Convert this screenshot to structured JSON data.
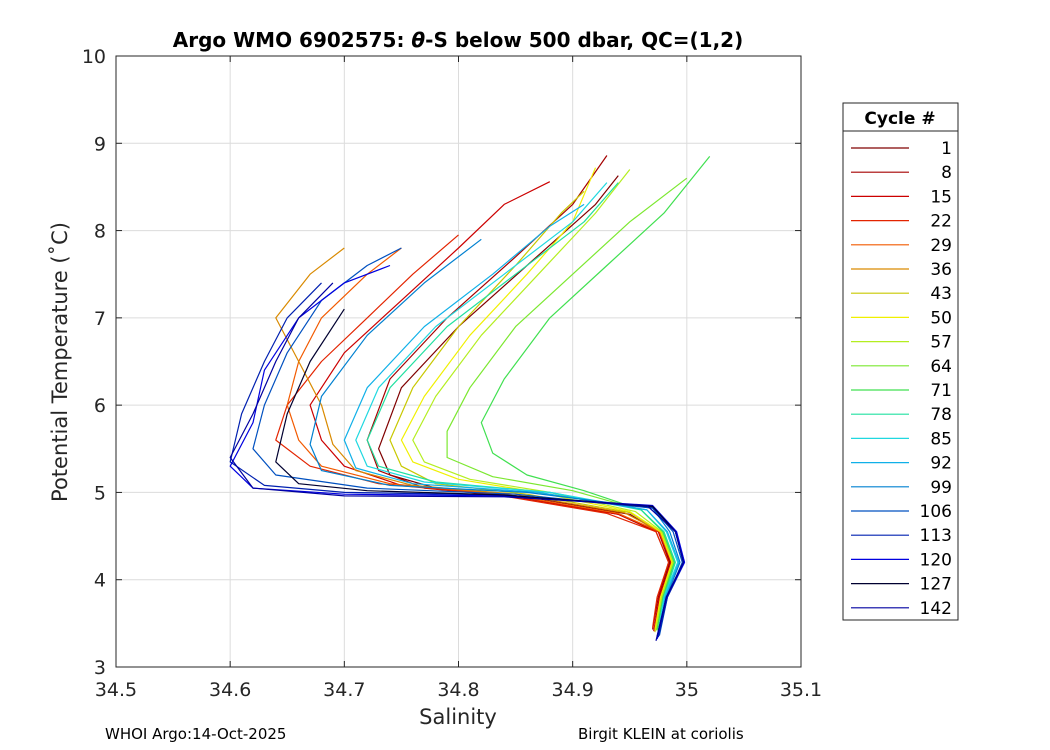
{
  "chart_data": {
    "type": "line",
    "title": "Argo WMO 6902575: θ-S below 500 dbar,  QC=(1,2)",
    "title_parts": {
      "prefix": "Argo WMO 6902575: ",
      "symbol": "θ",
      "suffix": "-S below 500 dbar,  QC=(1,2)"
    },
    "xlabel": "Salinity",
    "ylabel": "Potential Temperature (˚C)",
    "xlim": [
      34.5,
      35.1
    ],
    "ylim": [
      3,
      10
    ],
    "xticks": [
      "34.5",
      "34.6",
      "34.7",
      "34.8",
      "34.9",
      "35",
      "35.1"
    ],
    "yticks": [
      "3",
      "4",
      "5",
      "6",
      "7",
      "8",
      "9",
      "10"
    ],
    "grid": true,
    "legend_title": "Cycle #",
    "legend_position": "right",
    "series": [
      {
        "name": "1",
        "color": "#800000",
        "points": [
          [
            34.972,
            3.42
          ],
          [
            34.976,
            3.8
          ],
          [
            34.985,
            4.2
          ],
          [
            34.975,
            4.55
          ],
          [
            34.95,
            4.75
          ],
          [
            34.86,
            4.95
          ],
          [
            34.78,
            5.05
          ],
          [
            34.74,
            5.2
          ],
          [
            34.73,
            5.5
          ],
          [
            34.75,
            6.2
          ],
          [
            34.8,
            6.9
          ],
          [
            34.86,
            7.6
          ],
          [
            34.92,
            8.3
          ],
          [
            34.94,
            8.63
          ]
        ]
      },
      {
        "name": "8",
        "color": "#a50000",
        "points": [
          [
            34.97,
            3.43
          ],
          [
            34.975,
            3.8
          ],
          [
            34.984,
            4.2
          ],
          [
            34.973,
            4.55
          ],
          [
            34.94,
            4.75
          ],
          [
            34.85,
            4.95
          ],
          [
            34.77,
            5.05
          ],
          [
            34.73,
            5.25
          ],
          [
            34.72,
            5.6
          ],
          [
            34.74,
            6.3
          ],
          [
            34.79,
            7.0
          ],
          [
            34.85,
            7.7
          ],
          [
            34.9,
            8.3
          ],
          [
            34.93,
            8.86
          ]
        ]
      },
      {
        "name": "15",
        "color": "#cc0000",
        "points": [
          [
            34.971,
            3.41
          ],
          [
            34.976,
            3.8
          ],
          [
            34.986,
            4.2
          ],
          [
            34.975,
            4.55
          ],
          [
            34.94,
            4.75
          ],
          [
            34.84,
            4.97
          ],
          [
            34.75,
            5.08
          ],
          [
            34.7,
            5.3
          ],
          [
            34.68,
            5.6
          ],
          [
            34.67,
            6.0
          ],
          [
            34.7,
            6.6
          ],
          [
            34.75,
            7.2
          ],
          [
            34.8,
            7.8
          ],
          [
            34.84,
            8.3
          ],
          [
            34.88,
            8.56
          ]
        ]
      },
      {
        "name": "22",
        "color": "#e32400",
        "points": [
          [
            34.97,
            3.45
          ],
          [
            34.974,
            3.8
          ],
          [
            34.984,
            4.2
          ],
          [
            34.973,
            4.55
          ],
          [
            34.93,
            4.76
          ],
          [
            34.83,
            4.98
          ],
          [
            34.73,
            5.1
          ],
          [
            34.67,
            5.3
          ],
          [
            34.64,
            5.6
          ],
          [
            34.65,
            6.0
          ],
          [
            34.68,
            6.5
          ],
          [
            34.72,
            7.0
          ],
          [
            34.76,
            7.5
          ],
          [
            34.8,
            7.95
          ]
        ]
      },
      {
        "name": "29",
        "color": "#f25a00",
        "points": [
          [
            34.972,
            3.44
          ],
          [
            34.977,
            3.8
          ],
          [
            34.987,
            4.2
          ],
          [
            34.976,
            4.55
          ],
          [
            34.94,
            4.76
          ],
          [
            34.84,
            4.98
          ],
          [
            34.74,
            5.1
          ],
          [
            34.68,
            5.3
          ],
          [
            34.66,
            5.6
          ],
          [
            34.65,
            6.0
          ],
          [
            34.66,
            6.5
          ],
          [
            34.68,
            7.0
          ],
          [
            34.72,
            7.5
          ],
          [
            34.75,
            7.8
          ]
        ]
      },
      {
        "name": "36",
        "color": "#d98a00",
        "points": [
          [
            34.973,
            3.42
          ],
          [
            34.978,
            3.8
          ],
          [
            34.988,
            4.2
          ],
          [
            34.977,
            4.55
          ],
          [
            34.945,
            4.77
          ],
          [
            34.85,
            4.98
          ],
          [
            34.76,
            5.08
          ],
          [
            34.71,
            5.25
          ],
          [
            34.69,
            5.55
          ],
          [
            34.68,
            6.0
          ],
          [
            34.66,
            6.5
          ],
          [
            34.64,
            7.0
          ],
          [
            34.67,
            7.5
          ],
          [
            34.7,
            7.8
          ]
        ]
      },
      {
        "name": "43",
        "color": "#c8c800",
        "points": [
          [
            34.972,
            3.4
          ],
          [
            34.977,
            3.8
          ],
          [
            34.987,
            4.2
          ],
          [
            34.977,
            4.55
          ],
          [
            34.95,
            4.77
          ],
          [
            34.86,
            4.98
          ],
          [
            34.78,
            5.1
          ],
          [
            34.75,
            5.3
          ],
          [
            34.74,
            5.6
          ],
          [
            34.76,
            6.2
          ],
          [
            34.8,
            6.9
          ],
          [
            34.85,
            7.6
          ],
          [
            34.89,
            8.2
          ],
          [
            34.91,
            8.45
          ]
        ]
      },
      {
        "name": "50",
        "color": "#f0f000",
        "points": [
          [
            34.972,
            3.42
          ],
          [
            34.977,
            3.8
          ],
          [
            34.987,
            4.2
          ],
          [
            34.977,
            4.55
          ],
          [
            34.95,
            4.78
          ],
          [
            34.87,
            5.0
          ],
          [
            34.8,
            5.15
          ],
          [
            34.76,
            5.35
          ],
          [
            34.75,
            5.6
          ],
          [
            34.77,
            6.1
          ],
          [
            34.81,
            6.8
          ],
          [
            34.86,
            7.5
          ],
          [
            34.9,
            8.1
          ],
          [
            34.92,
            8.72
          ]
        ]
      },
      {
        "name": "57",
        "color": "#b4ee20",
        "points": [
          [
            34.973,
            3.42
          ],
          [
            34.978,
            3.8
          ],
          [
            34.988,
            4.2
          ],
          [
            34.978,
            4.55
          ],
          [
            34.955,
            4.78
          ],
          [
            34.88,
            5.0
          ],
          [
            34.81,
            5.15
          ],
          [
            34.77,
            5.35
          ],
          [
            34.76,
            5.6
          ],
          [
            34.78,
            6.1
          ],
          [
            34.82,
            6.8
          ],
          [
            34.87,
            7.5
          ],
          [
            34.92,
            8.2
          ],
          [
            34.95,
            8.7
          ]
        ]
      },
      {
        "name": "64",
        "color": "#7ce830",
        "points": [
          [
            34.974,
            3.43
          ],
          [
            34.979,
            3.8
          ],
          [
            34.989,
            4.2
          ],
          [
            34.979,
            4.55
          ],
          [
            34.96,
            4.8
          ],
          [
            34.9,
            5.02
          ],
          [
            34.83,
            5.18
          ],
          [
            34.79,
            5.4
          ],
          [
            34.79,
            5.7
          ],
          [
            34.81,
            6.2
          ],
          [
            34.85,
            6.9
          ],
          [
            34.9,
            7.5
          ],
          [
            34.95,
            8.1
          ],
          [
            35.0,
            8.6
          ]
        ]
      },
      {
        "name": "71",
        "color": "#40e050",
        "points": [
          [
            34.974,
            3.42
          ],
          [
            34.979,
            3.8
          ],
          [
            34.989,
            4.2
          ],
          [
            34.979,
            4.55
          ],
          [
            34.96,
            4.8
          ],
          [
            34.91,
            5.02
          ],
          [
            34.86,
            5.2
          ],
          [
            34.83,
            5.45
          ],
          [
            34.82,
            5.8
          ],
          [
            34.84,
            6.3
          ],
          [
            34.88,
            7.0
          ],
          [
            34.93,
            7.6
          ],
          [
            34.98,
            8.2
          ],
          [
            35.02,
            8.85
          ]
        ]
      },
      {
        "name": "78",
        "color": "#20e0a0",
        "points": [
          [
            34.975,
            3.42
          ],
          [
            34.98,
            3.8
          ],
          [
            34.99,
            4.2
          ],
          [
            34.98,
            4.55
          ],
          [
            34.96,
            4.8
          ],
          [
            34.88,
            5.0
          ],
          [
            34.78,
            5.12
          ],
          [
            34.73,
            5.3
          ],
          [
            34.72,
            5.6
          ],
          [
            34.74,
            6.2
          ],
          [
            34.79,
            6.9
          ],
          [
            34.85,
            7.5
          ],
          [
            34.91,
            8.1
          ],
          [
            34.94,
            8.55
          ]
        ]
      },
      {
        "name": "85",
        "color": "#20d8e0",
        "points": [
          [
            34.975,
            3.4
          ],
          [
            34.98,
            3.8
          ],
          [
            34.992,
            4.2
          ],
          [
            34.982,
            4.55
          ],
          [
            34.965,
            4.8
          ],
          [
            34.88,
            5.0
          ],
          [
            34.77,
            5.12
          ],
          [
            34.72,
            5.3
          ],
          [
            34.71,
            5.6
          ],
          [
            34.73,
            6.2
          ],
          [
            34.78,
            6.9
          ],
          [
            34.84,
            7.5
          ],
          [
            34.9,
            8.1
          ],
          [
            34.93,
            8.55
          ]
        ]
      },
      {
        "name": "92",
        "color": "#10b0e8",
        "points": [
          [
            34.976,
            3.4
          ],
          [
            34.981,
            3.8
          ],
          [
            34.993,
            4.2
          ],
          [
            34.983,
            4.55
          ],
          [
            34.965,
            4.8
          ],
          [
            34.87,
            5.0
          ],
          [
            34.76,
            5.1
          ],
          [
            34.71,
            5.28
          ],
          [
            34.7,
            5.6
          ],
          [
            34.72,
            6.2
          ],
          [
            34.77,
            6.9
          ],
          [
            34.83,
            7.5
          ],
          [
            34.88,
            8.05
          ],
          [
            34.91,
            8.3
          ]
        ]
      },
      {
        "name": "99",
        "color": "#0080d0",
        "points": [
          [
            34.976,
            3.38
          ],
          [
            34.982,
            3.8
          ],
          [
            34.994,
            4.2
          ],
          [
            34.985,
            4.55
          ],
          [
            34.97,
            4.82
          ],
          [
            34.86,
            5.0
          ],
          [
            34.74,
            5.08
          ],
          [
            34.68,
            5.25
          ],
          [
            34.67,
            5.55
          ],
          [
            34.68,
            6.1
          ],
          [
            34.72,
            6.8
          ],
          [
            34.77,
            7.4
          ],
          [
            34.82,
            7.9
          ]
        ]
      },
      {
        "name": "106",
        "color": "#0050c0",
        "points": [
          [
            34.976,
            3.36
          ],
          [
            34.983,
            3.8
          ],
          [
            34.996,
            4.2
          ],
          [
            34.988,
            4.55
          ],
          [
            34.97,
            4.82
          ],
          [
            34.85,
            4.98
          ],
          [
            34.72,
            5.05
          ],
          [
            34.64,
            5.2
          ],
          [
            34.62,
            5.5
          ],
          [
            34.63,
            6.0
          ],
          [
            34.65,
            6.6
          ],
          [
            34.68,
            7.2
          ],
          [
            34.72,
            7.6
          ],
          [
            34.75,
            7.8
          ]
        ]
      },
      {
        "name": "113",
        "color": "#0020b0",
        "points": [
          [
            34.975,
            3.34
          ],
          [
            34.983,
            3.8
          ],
          [
            34.998,
            4.2
          ],
          [
            34.99,
            4.55
          ],
          [
            34.97,
            4.83
          ],
          [
            34.84,
            4.97
          ],
          [
            34.7,
            5.0
          ],
          [
            34.63,
            5.08
          ],
          [
            34.6,
            5.35
          ],
          [
            34.61,
            5.9
          ],
          [
            34.63,
            6.5
          ],
          [
            34.65,
            7.0
          ],
          [
            34.68,
            7.4
          ]
        ]
      },
      {
        "name": "120",
        "color": "#0000e0",
        "points": [
          [
            34.974,
            3.32
          ],
          [
            34.982,
            3.8
          ],
          [
            34.998,
            4.2
          ],
          [
            34.991,
            4.55
          ],
          [
            34.97,
            4.85
          ],
          [
            34.84,
            4.96
          ],
          [
            34.7,
            4.98
          ],
          [
            34.62,
            5.05
          ],
          [
            34.6,
            5.3
          ],
          [
            34.62,
            5.8
          ],
          [
            34.63,
            6.4
          ],
          [
            34.66,
            7.0
          ],
          [
            34.7,
            7.4
          ],
          [
            34.74,
            7.6
          ]
        ]
      },
      {
        "name": "127",
        "color": "#000030",
        "points": [
          [
            34.974,
            3.35
          ],
          [
            34.982,
            3.8
          ],
          [
            34.997,
            4.2
          ],
          [
            34.99,
            4.55
          ],
          [
            34.97,
            4.84
          ],
          [
            34.84,
            4.97
          ],
          [
            34.72,
            5.02
          ],
          [
            34.66,
            5.1
          ],
          [
            34.64,
            5.35
          ],
          [
            34.65,
            5.9
          ],
          [
            34.67,
            6.5
          ],
          [
            34.7,
            7.1
          ]
        ]
      },
      {
        "name": "142",
        "color": "#0000a0",
        "points": [
          [
            34.973,
            3.3
          ],
          [
            34.982,
            3.8
          ],
          [
            34.997,
            4.2
          ],
          [
            34.99,
            4.55
          ],
          [
            34.965,
            4.85
          ],
          [
            34.84,
            4.95
          ],
          [
            34.7,
            4.96
          ],
          [
            34.62,
            5.05
          ],
          [
            34.6,
            5.4
          ],
          [
            34.62,
            5.9
          ],
          [
            34.64,
            6.5
          ],
          [
            34.66,
            7.0
          ],
          [
            34.69,
            7.4
          ]
        ]
      }
    ]
  },
  "footer": {
    "left": "WHOI Argo:14-Oct-2025",
    "right": "Birgit KLEIN at coriolis"
  }
}
